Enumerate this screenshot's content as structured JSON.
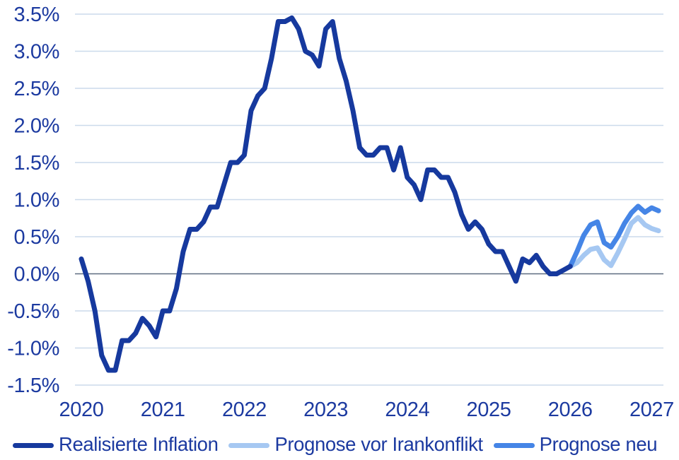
{
  "chart_data": {
    "type": "line",
    "title": "",
    "xlabel": "",
    "ylabel": "",
    "ylim": [
      -1.5,
      3.5
    ],
    "xlim": [
      2020,
      2027.2
    ],
    "grid": "horizontal-only",
    "unit": "%",
    "colors": {
      "axis_text": "#1c3aa0",
      "gridline": "#ccdaeb",
      "zero_line": "#5e6b80",
      "realized": "#16399e",
      "forecast_old": "#a6c8f2",
      "forecast_new": "#4585e6",
      "background": "#ffffff"
    },
    "y_ticks": [
      {
        "label": "3.5%",
        "value": 3.5
      },
      {
        "label": "3.0%",
        "value": 3.0
      },
      {
        "label": "2.5%",
        "value": 2.5
      },
      {
        "label": "2.0%",
        "value": 2.0
      },
      {
        "label": "1.5%",
        "value": 1.5
      },
      {
        "label": "1.0%",
        "value": 1.0
      },
      {
        "label": "0.5%",
        "value": 0.5
      },
      {
        "label": "0.0%",
        "value": 0.0
      },
      {
        "label": "-0.5%",
        "value": -0.5
      },
      {
        "label": "-1.0%",
        "value": -1.0
      },
      {
        "label": "-1.5%",
        "value": -1.5
      }
    ],
    "x_ticks": [
      {
        "label": "2020",
        "value": 2020
      },
      {
        "label": "2021",
        "value": 2021
      },
      {
        "label": "2022",
        "value": 2022
      },
      {
        "label": "2023",
        "value": 2023
      },
      {
        "label": "2024",
        "value": 2024
      },
      {
        "label": "2025",
        "value": 2025
      },
      {
        "label": "2026",
        "value": 2026
      },
      {
        "label": "2027",
        "value": 2027
      }
    ],
    "series": [
      {
        "name": "Prognose vor Irankonflikt",
        "id": "forecast-old",
        "color": "#a6c8f2",
        "stroke_width": 7,
        "start_year": 2026.0,
        "interval_months": 1,
        "values": [
          0.1,
          0.15,
          0.25,
          0.33,
          0.35,
          0.19,
          0.11,
          0.28,
          0.47,
          0.68,
          0.76,
          0.66,
          0.61,
          0.58
        ]
      },
      {
        "name": "Prognose neu",
        "id": "forecast-new",
        "color": "#4585e6",
        "stroke_width": 7,
        "start_year": 2026.0,
        "interval_months": 1,
        "values": [
          0.1,
          0.3,
          0.52,
          0.66,
          0.7,
          0.42,
          0.36,
          0.5,
          0.68,
          0.82,
          0.91,
          0.83,
          0.89,
          0.85
        ]
      },
      {
        "name": "Realisierte Inflation",
        "id": "realized",
        "color": "#16399e",
        "stroke_width": 7,
        "start_year": 2020.0,
        "interval_months": 1,
        "values": [
          0.2,
          -0.1,
          -0.5,
          -1.1,
          -1.3,
          -1.3,
          -0.9,
          -0.9,
          -0.8,
          -0.6,
          -0.7,
          -0.85,
          -0.5,
          -0.5,
          -0.2,
          0.3,
          0.6,
          0.6,
          0.7,
          0.9,
          0.9,
          1.2,
          1.5,
          1.5,
          1.6,
          2.2,
          2.4,
          2.5,
          2.9,
          3.4,
          3.4,
          3.45,
          3.3,
          3.0,
          2.95,
          2.8,
          3.3,
          3.4,
          2.9,
          2.6,
          2.2,
          1.7,
          1.6,
          1.6,
          1.7,
          1.7,
          1.4,
          1.7,
          1.3,
          1.2,
          1.0,
          1.4,
          1.4,
          1.3,
          1.3,
          1.1,
          0.8,
          0.6,
          0.7,
          0.6,
          0.4,
          0.3,
          0.3,
          0.1,
          -0.1,
          0.2,
          0.15,
          0.25,
          0.1,
          0.0,
          0.0,
          0.05,
          0.1
        ]
      }
    ],
    "legend": {
      "position": "bottom",
      "entries": [
        {
          "label": "Realisierte Inflation",
          "color": "#16399e"
        },
        {
          "label": "Prognose vor Irankonflikt",
          "color": "#a6c8f2"
        },
        {
          "label": "Prognose neu",
          "color": "#4585e6"
        }
      ]
    }
  }
}
